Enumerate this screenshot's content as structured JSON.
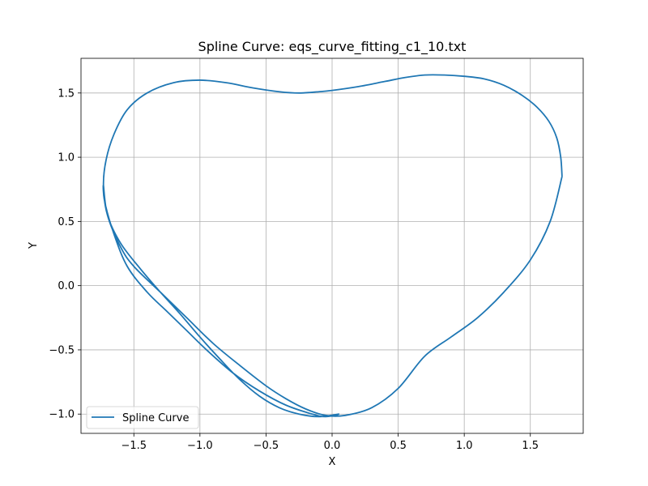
{
  "chart_data": {
    "type": "line",
    "title": "Spline Curve: eqs_curve_fitting_c1_10.txt",
    "xlabel": "X",
    "ylabel": "Y",
    "xlim": [
      -1.9,
      1.9
    ],
    "ylim": [
      -1.15,
      1.77
    ],
    "xticks": [
      -1.5,
      -1.0,
      -0.5,
      0.0,
      0.5,
      1.0,
      1.5
    ],
    "xtick_labels": [
      "−1.5",
      "−1.0",
      "−0.5",
      "0.0",
      "0.5",
      "1.0",
      "1.5"
    ],
    "yticks": [
      -1.0,
      -0.5,
      0.0,
      0.5,
      1.0,
      1.5
    ],
    "ytick_labels": [
      "−1.0",
      "−0.5",
      "0.0",
      "0.5",
      "1.0",
      "1.5"
    ],
    "grid": true,
    "legend_position": "lower-left",
    "series": [
      {
        "name": "Spline Curve",
        "color": "#1f77b4",
        "x": [
          1.74,
          1.73,
          1.7,
          1.64,
          1.55,
          1.44,
          1.3,
          1.15,
          1.0,
          0.85,
          0.7,
          0.55,
          0.4,
          0.2,
          0.0,
          -0.1,
          -0.25,
          -0.4,
          -0.6,
          -0.8,
          -1.0,
          -1.2,
          -1.4,
          -1.55,
          -1.65,
          -1.71,
          -1.73,
          -1.7,
          -1.6,
          -1.45,
          -1.3,
          -1.15,
          -1.0,
          -0.85,
          -0.7,
          -0.55,
          -0.4,
          -0.25,
          -0.1,
          0.05,
          -0.05,
          -0.15,
          -0.35,
          -0.55,
          -0.75,
          -0.95,
          -1.1,
          -1.25,
          -1.4,
          -1.55,
          -1.65,
          -1.72,
          -1.73,
          -1.7,
          -1.6,
          -1.5,
          -1.3,
          -1.1,
          -0.9,
          -0.7,
          -0.5,
          -0.35,
          -0.2,
          -0.05,
          0.1,
          0.3,
          0.5,
          0.7,
          0.9,
          1.1,
          1.3,
          1.5,
          1.65,
          1.74
        ],
        "y": [
          0.85,
          1.0,
          1.15,
          1.28,
          1.39,
          1.48,
          1.56,
          1.61,
          1.63,
          1.64,
          1.64,
          1.62,
          1.59,
          1.55,
          1.52,
          1.51,
          1.5,
          1.51,
          1.54,
          1.58,
          1.6,
          1.58,
          1.5,
          1.37,
          1.18,
          0.98,
          0.78,
          0.55,
          0.33,
          0.13,
          -0.05,
          -0.22,
          -0.4,
          -0.57,
          -0.73,
          -0.86,
          -0.95,
          -1.0,
          -1.02,
          -1.0,
          -1.02,
          -1.0,
          -0.93,
          -0.82,
          -0.68,
          -0.5,
          -0.35,
          -0.2,
          -0.05,
          0.15,
          0.4,
          0.65,
          0.78,
          0.55,
          0.3,
          0.15,
          -0.05,
          -0.25,
          -0.45,
          -0.62,
          -0.78,
          -0.88,
          -0.96,
          -1.01,
          -1.01,
          -0.95,
          -0.8,
          -0.55,
          -0.4,
          -0.25,
          -0.05,
          0.2,
          0.5,
          0.85
        ]
      }
    ]
  }
}
